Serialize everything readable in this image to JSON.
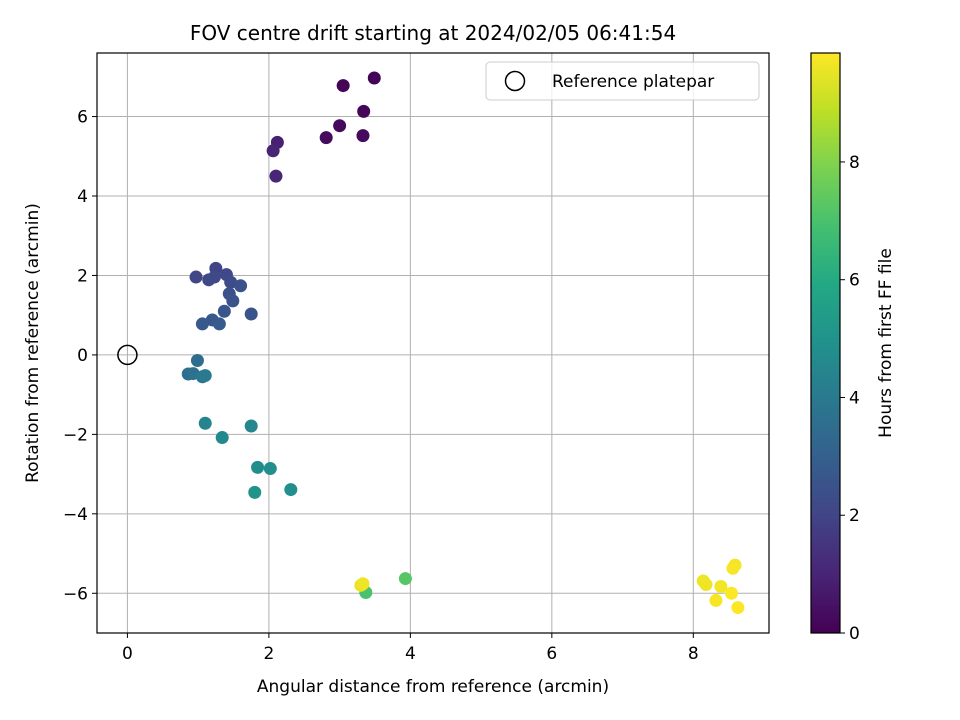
{
  "chart_data": {
    "type": "scatter",
    "title": "FOV centre drift starting at 2024/02/05 06:41:54",
    "xlabel": "Angular distance from reference (arcmin)",
    "ylabel": "Rotation from reference (arcmin)",
    "xlim": [
      -0.43,
      9.07
    ],
    "ylim": [
      -7.0,
      7.6
    ],
    "xticks": [
      0,
      2,
      4,
      6,
      8
    ],
    "yticks": [
      -6,
      -4,
      -2,
      0,
      2,
      4,
      6
    ],
    "grid": true,
    "legend": {
      "placement": "top-right",
      "entries": [
        "Reference platepar"
      ]
    },
    "reference_point": {
      "x": 0,
      "y": 0
    },
    "colorbar": {
      "label": "Hours from first FF file",
      "colormap": "viridis",
      "range": [
        0,
        9.85
      ],
      "ticks": [
        0,
        2,
        4,
        6,
        8
      ]
    },
    "points": [
      {
        "x": 3.49,
        "y": 6.97,
        "c": 0.05
      },
      {
        "x": 3.05,
        "y": 6.78,
        "c": 0.1
      },
      {
        "x": 3.34,
        "y": 6.13,
        "c": 0.15
      },
      {
        "x": 3.0,
        "y": 5.77,
        "c": 0.2
      },
      {
        "x": 3.33,
        "y": 5.52,
        "c": 0.25
      },
      {
        "x": 2.81,
        "y": 5.47,
        "c": 0.3
      },
      {
        "x": 2.12,
        "y": 5.35,
        "c": 0.9
      },
      {
        "x": 2.06,
        "y": 5.14,
        "c": 1.0
      },
      {
        "x": 2.1,
        "y": 4.5,
        "c": 1.1
      },
      {
        "x": 1.25,
        "y": 2.18,
        "c": 2.0
      },
      {
        "x": 1.4,
        "y": 2.02,
        "c": 2.1
      },
      {
        "x": 0.97,
        "y": 1.96,
        "c": 2.05
      },
      {
        "x": 1.23,
        "y": 1.96,
        "c": 2.2
      },
      {
        "x": 1.15,
        "y": 1.89,
        "c": 2.15
      },
      {
        "x": 1.46,
        "y": 1.83,
        "c": 2.3
      },
      {
        "x": 1.6,
        "y": 1.74,
        "c": 2.4
      },
      {
        "x": 1.44,
        "y": 1.54,
        "c": 2.45
      },
      {
        "x": 1.49,
        "y": 1.36,
        "c": 2.5
      },
      {
        "x": 1.37,
        "y": 1.1,
        "c": 2.6
      },
      {
        "x": 1.75,
        "y": 1.03,
        "c": 2.55
      },
      {
        "x": 1.2,
        "y": 0.88,
        "c": 2.7
      },
      {
        "x": 1.06,
        "y": 0.78,
        "c": 2.75
      },
      {
        "x": 1.3,
        "y": 0.78,
        "c": 2.8
      },
      {
        "x": 0.99,
        "y": -0.14,
        "c": 3.5
      },
      {
        "x": 0.86,
        "y": -0.48,
        "c": 3.6
      },
      {
        "x": 0.93,
        "y": -0.47,
        "c": 3.65
      },
      {
        "x": 1.06,
        "y": -0.55,
        "c": 3.9
      },
      {
        "x": 1.1,
        "y": -0.52,
        "c": 4.0
      },
      {
        "x": 1.1,
        "y": -1.72,
        "c": 4.4
      },
      {
        "x": 1.75,
        "y": -1.79,
        "c": 4.5
      },
      {
        "x": 1.34,
        "y": -2.08,
        "c": 4.6
      },
      {
        "x": 1.84,
        "y": -2.83,
        "c": 4.8
      },
      {
        "x": 2.02,
        "y": -2.86,
        "c": 4.85
      },
      {
        "x": 2.31,
        "y": -3.39,
        "c": 4.9
      },
      {
        "x": 1.8,
        "y": -3.46,
        "c": 5.0
      },
      {
        "x": 3.93,
        "y": -5.63,
        "c": 7.2
      },
      {
        "x": 3.37,
        "y": -5.98,
        "c": 7.0
      },
      {
        "x": 3.3,
        "y": -5.8,
        "c": 9.5
      },
      {
        "x": 3.33,
        "y": -5.76,
        "c": 9.6
      },
      {
        "x": 8.59,
        "y": -5.29,
        "c": 9.7
      },
      {
        "x": 8.56,
        "y": -5.37,
        "c": 9.75
      },
      {
        "x": 8.14,
        "y": -5.69,
        "c": 9.6
      },
      {
        "x": 8.18,
        "y": -5.78,
        "c": 9.65
      },
      {
        "x": 8.39,
        "y": -5.83,
        "c": 9.7
      },
      {
        "x": 8.54,
        "y": -6.0,
        "c": 9.8
      },
      {
        "x": 8.32,
        "y": -6.18,
        "c": 9.75
      },
      {
        "x": 8.63,
        "y": -6.36,
        "c": 9.85
      }
    ]
  }
}
